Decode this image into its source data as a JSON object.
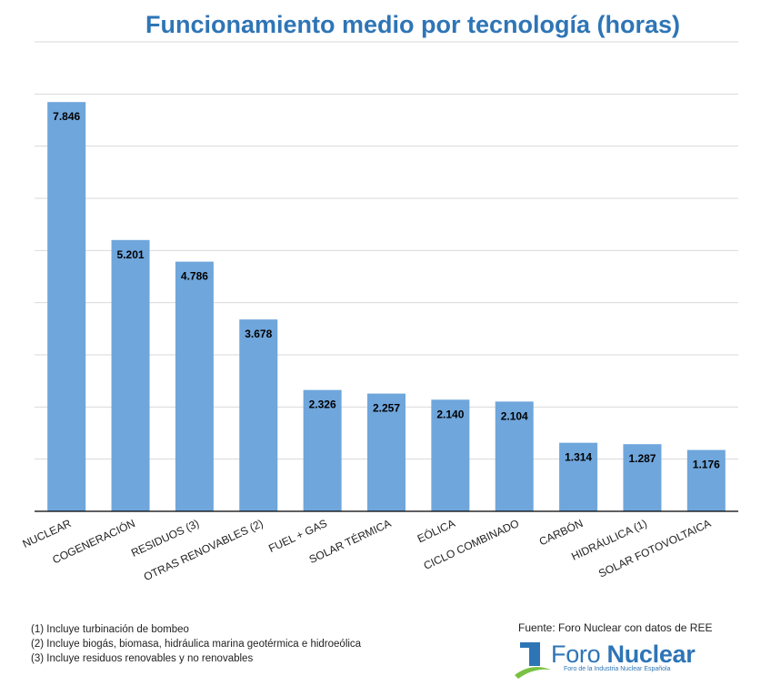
{
  "chart_data": {
    "type": "bar",
    "title": "Funcionamiento medio por tecnología (horas)",
    "categories": [
      "NUCLEAR",
      "COGENERACIÓN",
      "RESIDUOS (3)",
      "OTRAS RENOVABLES (2)",
      "FUEL + GAS",
      "SOLAR TÉRMICA",
      "EÓLICA",
      "CICLO COMBINADO",
      "CARBÓN",
      "HIDRÁULICA (1)",
      "SOLAR FOTOVOLTAICA"
    ],
    "values": [
      7846,
      5201,
      4786,
      3678,
      2326,
      2257,
      2140,
      2104,
      1314,
      1287,
      1176
    ],
    "value_labels": [
      "7.846",
      "5.201",
      "4.786",
      "3.678",
      "2.326",
      "2.257",
      "2.140",
      "2.104",
      "1.314",
      "1.287",
      "1.176"
    ],
    "ylim": [
      0,
      9000
    ],
    "grid": true,
    "bar_color": "#6fa6dc",
    "label_color": "#000000"
  },
  "footnotes": [
    "(1) Incluye turbinación de bombeo",
    "(2) Incluye biogás, biomasa, hidráulica marina geotérmica e hidroeólica",
    "(3) Incluye residuos renovables y no renovables"
  ],
  "source": "Fuente: Foro Nuclear con datos de REE",
  "logo": {
    "name_light": "Foro ",
    "name_bold": "Nuclear",
    "tagline": "Foro de la Industria Nuclear Española",
    "color": "#2e75b6"
  }
}
